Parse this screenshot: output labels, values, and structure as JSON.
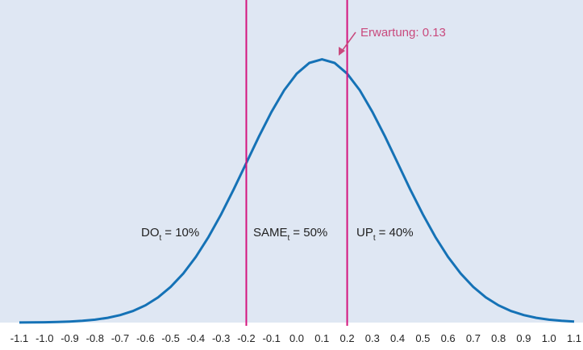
{
  "chart_data": {
    "type": "line",
    "x": [
      -1.1,
      -1.05,
      -1.0,
      -0.95,
      -0.9,
      -0.85,
      -0.8,
      -0.75,
      -0.7,
      -0.65,
      -0.6,
      -0.55,
      -0.5,
      -0.45,
      -0.4,
      -0.35,
      -0.3,
      -0.25,
      -0.2,
      -0.15,
      -0.1,
      -0.05,
      0.0,
      0.05,
      0.1,
      0.15,
      0.2,
      0.25,
      0.3,
      0.35,
      0.4,
      0.45,
      0.5,
      0.55,
      0.6,
      0.65,
      0.7,
      0.75,
      0.8,
      0.85,
      0.9,
      0.95,
      1.0,
      1.05,
      1.1
    ],
    "values": [
      0.0004,
      0.0009,
      0.0016,
      0.0029,
      0.0051,
      0.0088,
      0.0148,
      0.024,
      0.038,
      0.0584,
      0.0874,
      0.127,
      0.18,
      0.248,
      0.332,
      0.432,
      0.547,
      0.673,
      0.807,
      0.94,
      1.065,
      1.174,
      1.258,
      1.312,
      1.33,
      1.312,
      1.258,
      1.174,
      1.065,
      0.94,
      0.807,
      0.673,
      0.547,
      0.432,
      0.332,
      0.248,
      0.18,
      0.127,
      0.0874,
      0.0584,
      0.038,
      0.024,
      0.0148,
      0.0088,
      0.0051
    ],
    "color": "#1572b6",
    "xlim": [
      -1.1,
      1.1
    ],
    "ylim": [
      0,
      1.63
    ],
    "xticks": [
      -1.1,
      {
        "value": -1.0,
        "label": "-1.0"
      },
      -0.9,
      -0.8,
      -0.7,
      -0.6,
      -0.5,
      -0.4,
      -0.3,
      -0.2,
      -0.1,
      {
        "value": 0.0,
        "label": "0.0"
      },
      0.1,
      0.2,
      0.3,
      0.4,
      0.5,
      0.6,
      0.7,
      0.8,
      0.9,
      {
        "value": 1.0,
        "label": "1.0"
      },
      1.1
    ],
    "vlines": [
      -0.2,
      0.2
    ],
    "vline_color": "#d4147e",
    "annotation": "Erwartung: 0.13",
    "annotation_color": "#c94a7d",
    "regions": [
      {
        "name": "DO",
        "sub": "t",
        "text": "= 10%"
      },
      {
        "name": "SAME",
        "sub": "t",
        "text": "= 50%"
      },
      {
        "name": "UP",
        "sub": "t",
        "text": "= 40%"
      }
    ]
  }
}
